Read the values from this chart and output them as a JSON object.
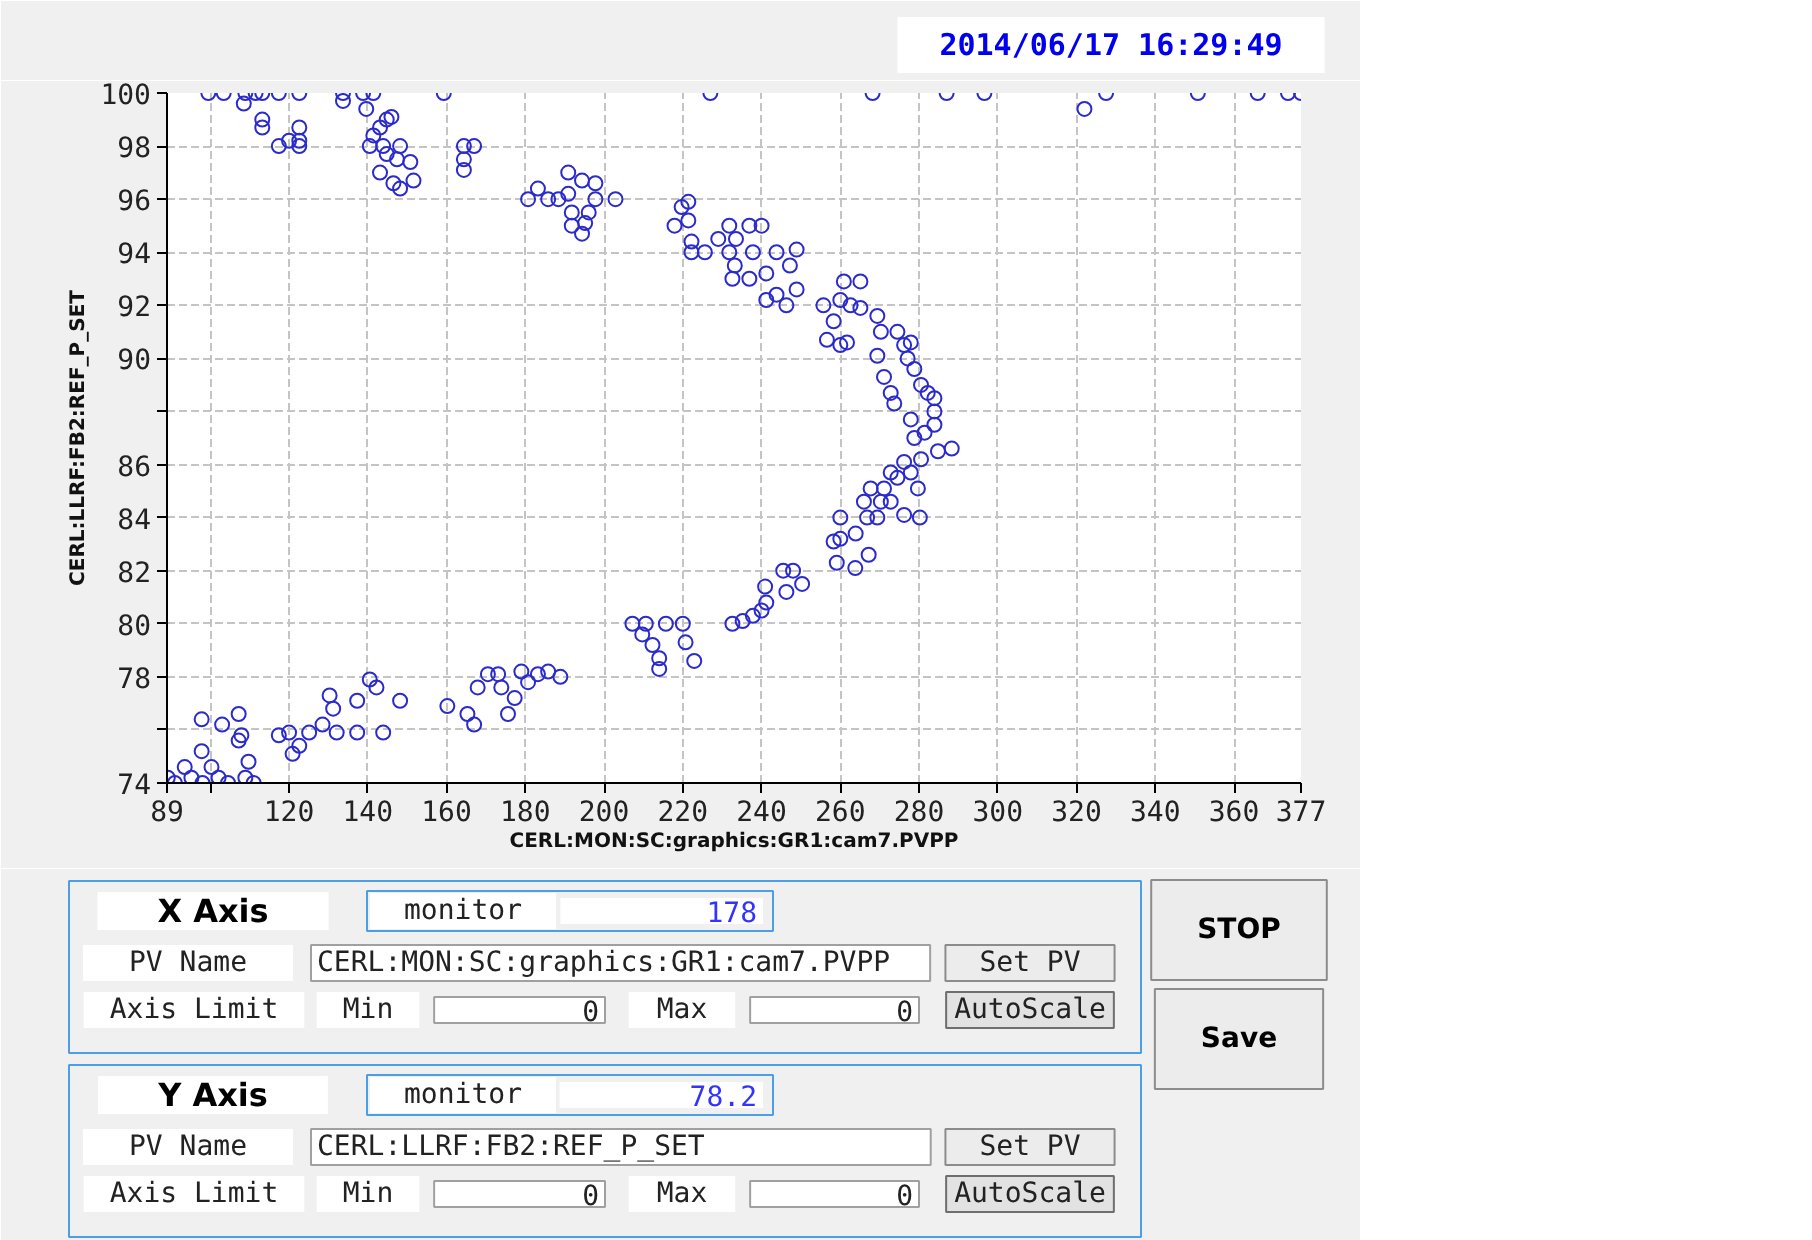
{
  "chart_data": [
    {
      "type": "scatter",
      "xlabel": "CERL:MON:SC:graphics:GR1:cam7.PVPP",
      "ylabel": "CERL:LLRF:FB2:REF_P_SET",
      "annotations": [
        "2014/06/17 16:29:49"
      ],
      "color": "#2b2bcc",
      "marker": "circle",
      "grid": true,
      "xlim": [
        89,
        377
      ],
      "ylim": [
        74,
        100
      ],
      "xticks": [
        89,
        {
          "value": 100,
          "label": null
        },
        120,
        140,
        160,
        180,
        200,
        220,
        240,
        260,
        280,
        300,
        320,
        340,
        360,
        377
      ],
      "yticks": [
        74,
        {
          "value": 76,
          "label": null
        },
        78,
        80,
        82,
        84,
        86,
        {
          "value": 88,
          "label": null
        },
        90,
        92,
        94,
        96,
        98,
        100
      ],
      "x": [
        99.5,
        103.4,
        108.9,
        111.5,
        113.2,
        117.4,
        122.6,
        133.7,
        138.8,
        141.4,
        159.3,
        227,
        268.2,
        287,
        296.6,
        327.5,
        350.8,
        366,
        373.7,
        377,
        322,
        108.5,
        113.2,
        113.2,
        133.7,
        139.6,
        117.4,
        120,
        122.6,
        122.6,
        122.6,
        140.5,
        141.4,
        143.1,
        144.8,
        146,
        143.9,
        144.8,
        148.2,
        147.4,
        143.1,
        146.5,
        148.2,
        150.8,
        151.6,
        164.4,
        164.4,
        164.4,
        167,
        180.7,
        183.2,
        185.8,
        188.4,
        190.9,
        190.9,
        191.8,
        191.8,
        194.4,
        195.2,
        196.1,
        194.4,
        197.8,
        197.8,
        202.9,
        217.9,
        219.7,
        221.4,
        221.4,
        222.2,
        222.2,
        225.6,
        229,
        231.8,
        231.8,
        232.6,
        233.5,
        233.2,
        236.9,
        236.9,
        240,
        237.8,
        241.2,
        241.2,
        243.8,
        243.8,
        246.3,
        247.2,
        248.9,
        248.9,
        255.7,
        256.6,
        258.3,
        260,
        260.9,
        260,
        261.7,
        262.6,
        265.1,
        265.1,
        269.4,
        270.3,
        269.4,
        271.1,
        272.8,
        273.7,
        274.5,
        276.2,
        277.1,
        277.9,
        278.8,
        280.5,
        282.2,
        283.9,
        283.9,
        277.9,
        278.8,
        280.5,
        283.9,
        284.8,
        288.3,
        281.4,
        277.9,
        279.7,
        276.2,
        272.8,
        271.1,
        267.7,
        270.3,
        272.8,
        276.2,
        280.2,
        274.5,
        266,
        266.8,
        269.4,
        260,
        258.3,
        260,
        259.1,
        263.9,
        263.8,
        267.2,
        245.5,
        248,
        250.3,
        246.3,
        240.9,
        241.2,
        240,
        237.8,
        235.2,
        232.6,
        222.9,
        220.7,
        207.2,
        210.6,
        209.7,
        212.3,
        214,
        214,
        215.7,
        220,
        89.2,
        93.5,
        95.2,
        97.8,
        97.8,
        100.3,
        102.1,
        103,
        107.2,
        107.2,
        107.9,
        108.9,
        109.7,
        117.4,
        120,
        120.9,
        122.6,
        125.1,
        128.5,
        130.3,
        131.2,
        132.1,
        137.3,
        137.3,
        140.5,
        142.2,
        143.9,
        148.2,
        160.2,
        165.3,
        167,
        167.9,
        170.5,
        173.1,
        173.9,
        175.6,
        177.3,
        179,
        180.7,
        183.2,
        185.8,
        188.9,
        91,
        98,
        104.5,
        111
      ],
      "values": [
        100,
        100,
        100,
        100,
        100,
        100,
        100,
        100,
        100,
        100,
        100,
        100,
        100,
        100,
        100,
        100,
        100,
        100,
        100,
        100,
        99.4,
        99.6,
        99,
        98.7,
        99.7,
        99.4,
        98,
        98.2,
        98.2,
        98.7,
        98,
        98,
        98.4,
        98.7,
        99,
        99.1,
        98,
        97.7,
        98,
        97.5,
        97,
        96.6,
        96.4,
        97.4,
        96.7,
        98,
        97.5,
        97.1,
        98,
        96,
        96.4,
        96,
        96,
        97,
        96.2,
        95.5,
        95,
        94.7,
        95.1,
        95.5,
        96.7,
        96.6,
        96,
        96,
        95,
        95.7,
        95.9,
        95.2,
        94.4,
        94,
        94,
        94.5,
        95,
        94,
        93,
        94.5,
        93.5,
        95,
        93,
        95,
        94,
        93.2,
        92.2,
        94,
        92.4,
        92,
        93.5,
        94.1,
        92.6,
        92,
        90.7,
        91.4,
        92.2,
        92.9,
        90.5,
        90.6,
        92,
        92.9,
        91.9,
        91.6,
        91,
        90.1,
        89.3,
        88.7,
        88.3,
        91,
        90.5,
        90,
        90.6,
        89.6,
        89,
        88.7,
        88.5,
        88,
        87.7,
        87,
        86.2,
        87.5,
        86.5,
        86.6,
        87.2,
        85.7,
        85.1,
        86.1,
        85.7,
        85.1,
        85.1,
        84.6,
        84.6,
        84.1,
        84,
        85.5,
        84.6,
        84,
        84,
        84,
        83.1,
        83.2,
        82.3,
        83.4,
        82.1,
        82.6,
        82,
        82,
        81.5,
        81.2,
        81.4,
        80.8,
        80.5,
        80.3,
        80.1,
        80,
        78.6,
        79.3,
        80,
        80,
        79.6,
        79.2,
        78.7,
        78.3,
        80,
        80,
        74.2,
        74.6,
        74.2,
        75.2,
        76.4,
        74.6,
        74.2,
        76.2,
        76.6,
        75.6,
        75.8,
        74.2,
        74.8,
        75.8,
        75.9,
        75.1,
        75.4,
        75.9,
        76.2,
        77.3,
        76.8,
        75.9,
        75.9,
        77.1,
        77.9,
        77.6,
        75.9,
        77.1,
        76.9,
        76.6,
        76.2,
        77.6,
        78.1,
        78.1,
        77.6,
        76.6,
        77.2,
        78.2,
        77.8,
        78.1,
        78.2,
        78,
        74,
        74,
        74,
        74
      ]
    },
    {
      "type": "other",
      "annotations": [
        "X Axis",
        "monitor",
        "178",
        "PV Name",
        "CERL:MON:SC:graphics:GR1:cam7.PVPP",
        "Set PV",
        "Axis Limit",
        "Min",
        "0",
        "Max",
        "0",
        "AutoScale",
        "Y Axis",
        "monitor",
        "78.2",
        "PV Name",
        "CERL:LLRF:FB2:REF_P_SET",
        "Set PV",
        "Axis Limit",
        "Min",
        "0",
        "Max",
        "0",
        "AutoScale",
        "STOP",
        "Save"
      ]
    }
  ]
}
